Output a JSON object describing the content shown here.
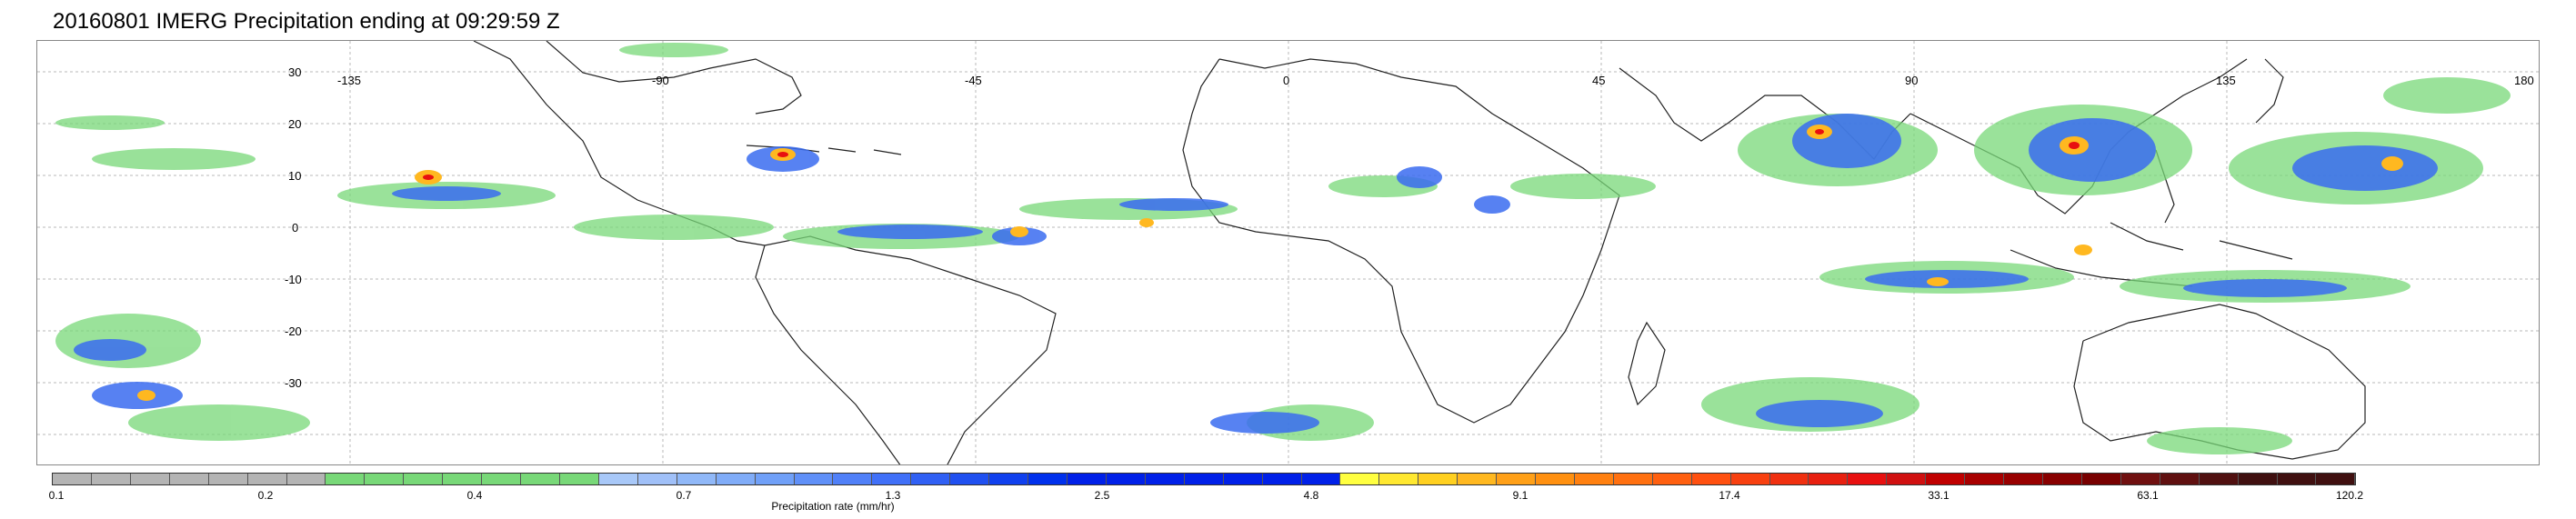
{
  "title": "20160801 IMERG Precipitation ending at 09:29:59 Z",
  "map": {
    "lat_labels": [
      "30",
      "20",
      "10",
      "0",
      "-10",
      "-20",
      "-30"
    ],
    "lon_labels": [
      "-135",
      "-90",
      "-45",
      "0",
      "45",
      "90",
      "135",
      "180"
    ]
  },
  "colorbar": {
    "title": "Precipitation rate (mm/hr)",
    "tick_labels": [
      "0.1",
      "0.2",
      "0.4",
      "0.7",
      "1.3",
      "2.5",
      "4.8",
      "9.1",
      "17.4",
      "33.1",
      "63.1",
      "120.2"
    ],
    "colors": [
      "#b4b4b4",
      "#b4b4b4",
      "#b4b4b4",
      "#b4b4b4",
      "#b4b4b4",
      "#b4b4b4",
      "#b4b4b4",
      "#78d878",
      "#78d878",
      "#78d878",
      "#78d878",
      "#78d878",
      "#78d878",
      "#78d878",
      "#a8c8f8",
      "#a0c0f8",
      "#90b8f8",
      "#80acf8",
      "#70a0f8",
      "#6090f8",
      "#5080f8",
      "#4070f8",
      "#3060f4",
      "#2050f0",
      "#1040ee",
      "#0030ec",
      "#0020e8",
      "#0020e8",
      "#0020e8",
      "#0020e8",
      "#0020e8",
      "#0020e8",
      "#0020e8",
      "#ffff40",
      "#ffe830",
      "#ffd020",
      "#ffb820",
      "#ffa018",
      "#ff9010",
      "#ff8010",
      "#ff7010",
      "#ff6010",
      "#ff5010",
      "#f84010",
      "#f03010",
      "#e82010",
      "#e81010",
      "#d01010",
      "#c00000",
      "#a80000",
      "#980000",
      "#880000",
      "#780000",
      "#701010",
      "#601010",
      "#501010",
      "#401010",
      "#401010",
      "#401010"
    ]
  }
}
